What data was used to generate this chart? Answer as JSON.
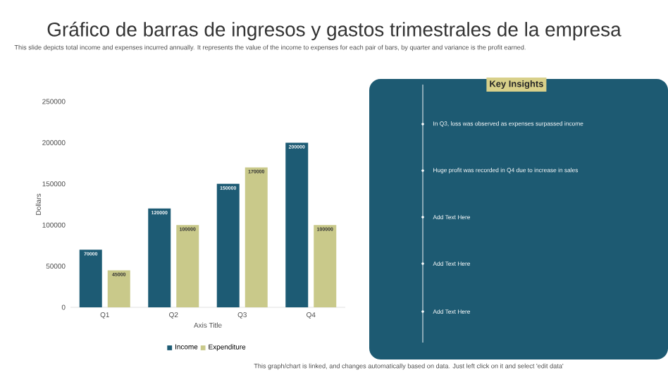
{
  "chart_data": [
    {
      "type": "bar",
      "title": "Gráfico de barras de ingresos y gastos trimestrales de la empresa",
      "subtitle": "This slide depicts total income and expenses incurred annually. It represents the value of the income to expenses for each pair of bars, by quarter and variance is the profit earned.",
      "annotations": [
        "This graph/chart is linked, and changes automatically based on data. Just left click on it and select 'edit data'"
      ],
      "xlabel": "Axis Title",
      "ylabel": "Dollars",
      "categories": [
        "Q1",
        "Q2",
        "Q3",
        "Q4"
      ],
      "series": [
        {
          "name": "Income",
          "color": "#1d5b74",
          "values": [
            70000,
            120000,
            150000,
            200000
          ]
        },
        {
          "name": "Expenditure",
          "color": "#c9c98a",
          "values": [
            45000,
            100000,
            170000,
            100000
          ]
        }
      ],
      "ylim": [
        0,
        250000
      ],
      "yticks": [
        0,
        50000,
        100000,
        150000,
        200000,
        250000
      ],
      "data_labels": true,
      "legend": "bottom",
      "grid": false
    },
    {
      "type": "other",
      "title": "Key Insights",
      "annotations": [
        "In Q3, loss was observed as expenses surpassed income",
        "Huge profit was recorded in Q4 due to increase in sales",
        "Add Text Here",
        "Add Text Here",
        "Add Text Here"
      ]
    }
  ]
}
